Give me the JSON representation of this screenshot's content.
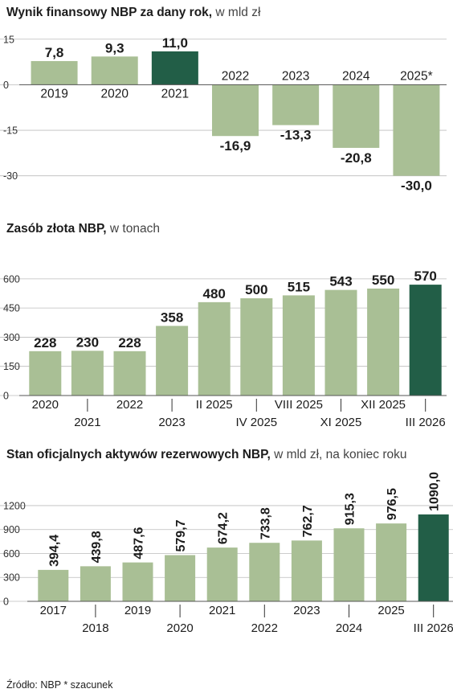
{
  "colors": {
    "bar": "#a9bf95",
    "highlight": "#225e47",
    "axis": "#555555",
    "grid": "#bcbcbc"
  },
  "source_note": "Źródło: NBP * szacunek",
  "chart_data": [
    {
      "type": "bar",
      "title": "Wynik finansowy NBP za dany rok,",
      "subtitle": "w mld zł",
      "categories": [
        "2019",
        "2020",
        "2021",
        "2022",
        "2023",
        "2024",
        "2025*"
      ],
      "values": [
        7.8,
        9.3,
        11.0,
        -16.9,
        -13.3,
        -20.8,
        -30.0
      ],
      "value_labels": [
        "7,8",
        "9,3",
        "11,0",
        "-16,9",
        "-13,3",
        "-20,8",
        "-30,0"
      ],
      "highlight_index": 2,
      "yticks": [
        "15",
        "0",
        "-15",
        "-30"
      ],
      "ytick_values": [
        15,
        0,
        -15,
        -30
      ],
      "ylim": [
        -33,
        16
      ],
      "grid": true
    },
    {
      "type": "bar",
      "title": "Zasób złota NBP,",
      "subtitle": "w tonach",
      "categories": [
        "2020",
        "2021",
        "2022",
        "2023",
        "II 2025",
        "IV 2025",
        "VIII 2025",
        "XI 2025",
        "XII 2025",
        "III 2026"
      ],
      "values": [
        228,
        230,
        228,
        358,
        480,
        500,
        515,
        543,
        550,
        570
      ],
      "value_labels": [
        "228",
        "230",
        "228",
        "358",
        "480",
        "500",
        "515",
        "543",
        "550",
        "570"
      ],
      "highlight_index": 9,
      "yticks": [
        "600",
        "450",
        "300",
        "150",
        "0"
      ],
      "ytick_values": [
        600,
        450,
        300,
        150,
        0
      ],
      "ylim": [
        0,
        620
      ],
      "grid": true
    },
    {
      "type": "bar",
      "title": "Stan oficjalnych aktywów rezerwowych NBP,",
      "subtitle": "w mld zł, na koniec roku",
      "categories": [
        "2017",
        "2018",
        "2019",
        "2020",
        "2021",
        "2022",
        "2023",
        "2024",
        "2025",
        "III 2026"
      ],
      "values": [
        394.4,
        439.8,
        487.6,
        579.7,
        674.2,
        733.8,
        762.7,
        915.3,
        976.5,
        1090.0
      ],
      "value_labels": [
        "394,4",
        "439,8",
        "487,6",
        "579,7",
        "674,2",
        "733,8",
        "762,7",
        "915,3",
        "976,5",
        "1090,0"
      ],
      "highlight_index": 9,
      "yticks": [
        "1200",
        "900",
        "600",
        "300",
        "0"
      ],
      "ytick_values": [
        1200,
        900,
        600,
        300,
        0
      ],
      "ylim": [
        0,
        1250
      ],
      "grid": true
    }
  ]
}
